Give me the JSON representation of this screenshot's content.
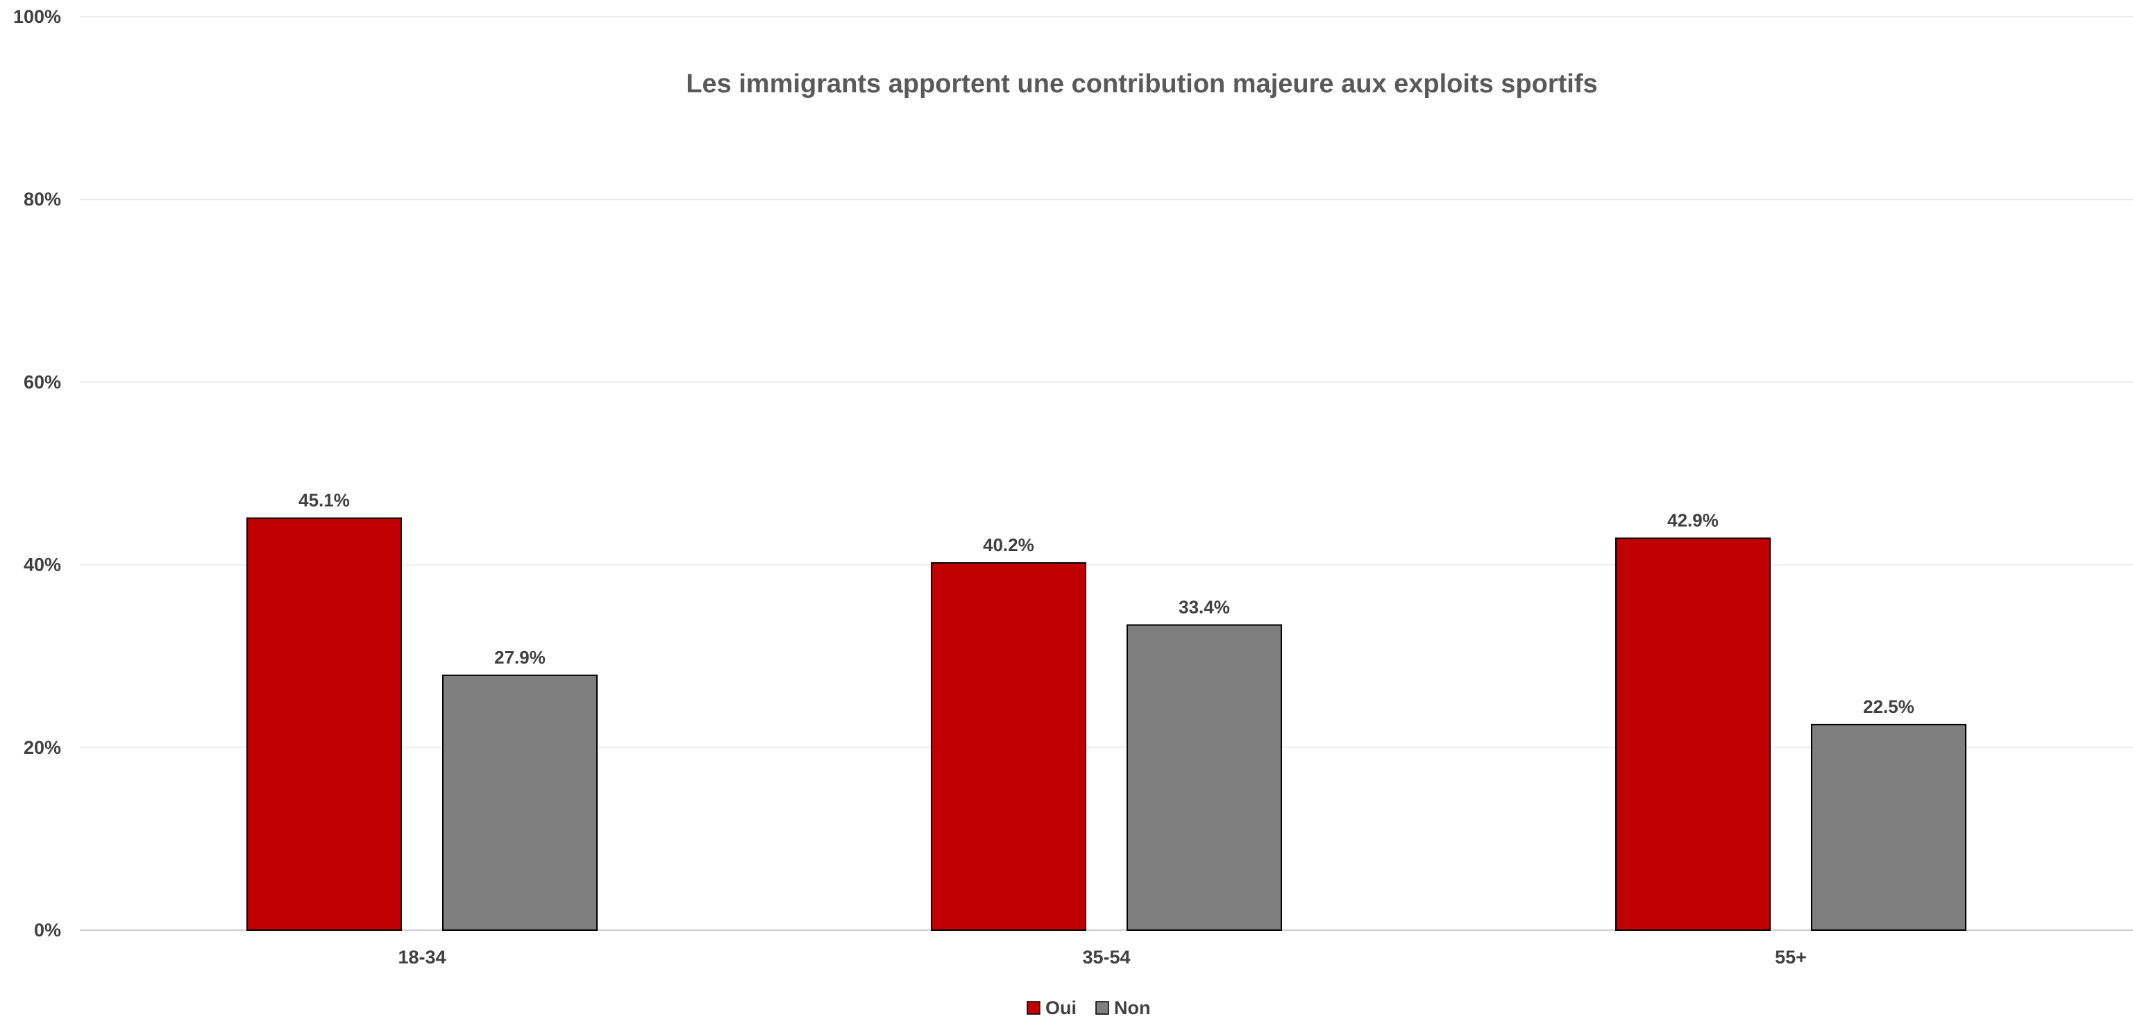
{
  "chart_data": {
    "type": "bar",
    "title": "Les immigrants apportent une contribution majeure aux exploits sportifs",
    "xlabel": "",
    "ylabel": "",
    "categories": [
      "18-34",
      "35-54",
      "55+"
    ],
    "series": [
      {
        "name": "Oui",
        "values": [
          45.1,
          40.2,
          42.9
        ],
        "color": "#c00000"
      },
      {
        "name": "Non",
        "values": [
          27.9,
          33.4,
          22.5
        ],
        "color": "#7f7f7f"
      }
    ],
    "value_suffix": "%",
    "ylim": [
      0,
      100
    ],
    "yticks": [
      0,
      20,
      40,
      60,
      80,
      100
    ],
    "ytick_labels": [
      "0%",
      "20%",
      "40%",
      "60%",
      "80%",
      "100%"
    ],
    "grid": true,
    "legend_position": "bottom",
    "colors": {
      "title": "#595959",
      "labels": "#404040",
      "gridline": "#ececec",
      "axis": "#d0d0d0",
      "bar_border": "#000000"
    }
  }
}
